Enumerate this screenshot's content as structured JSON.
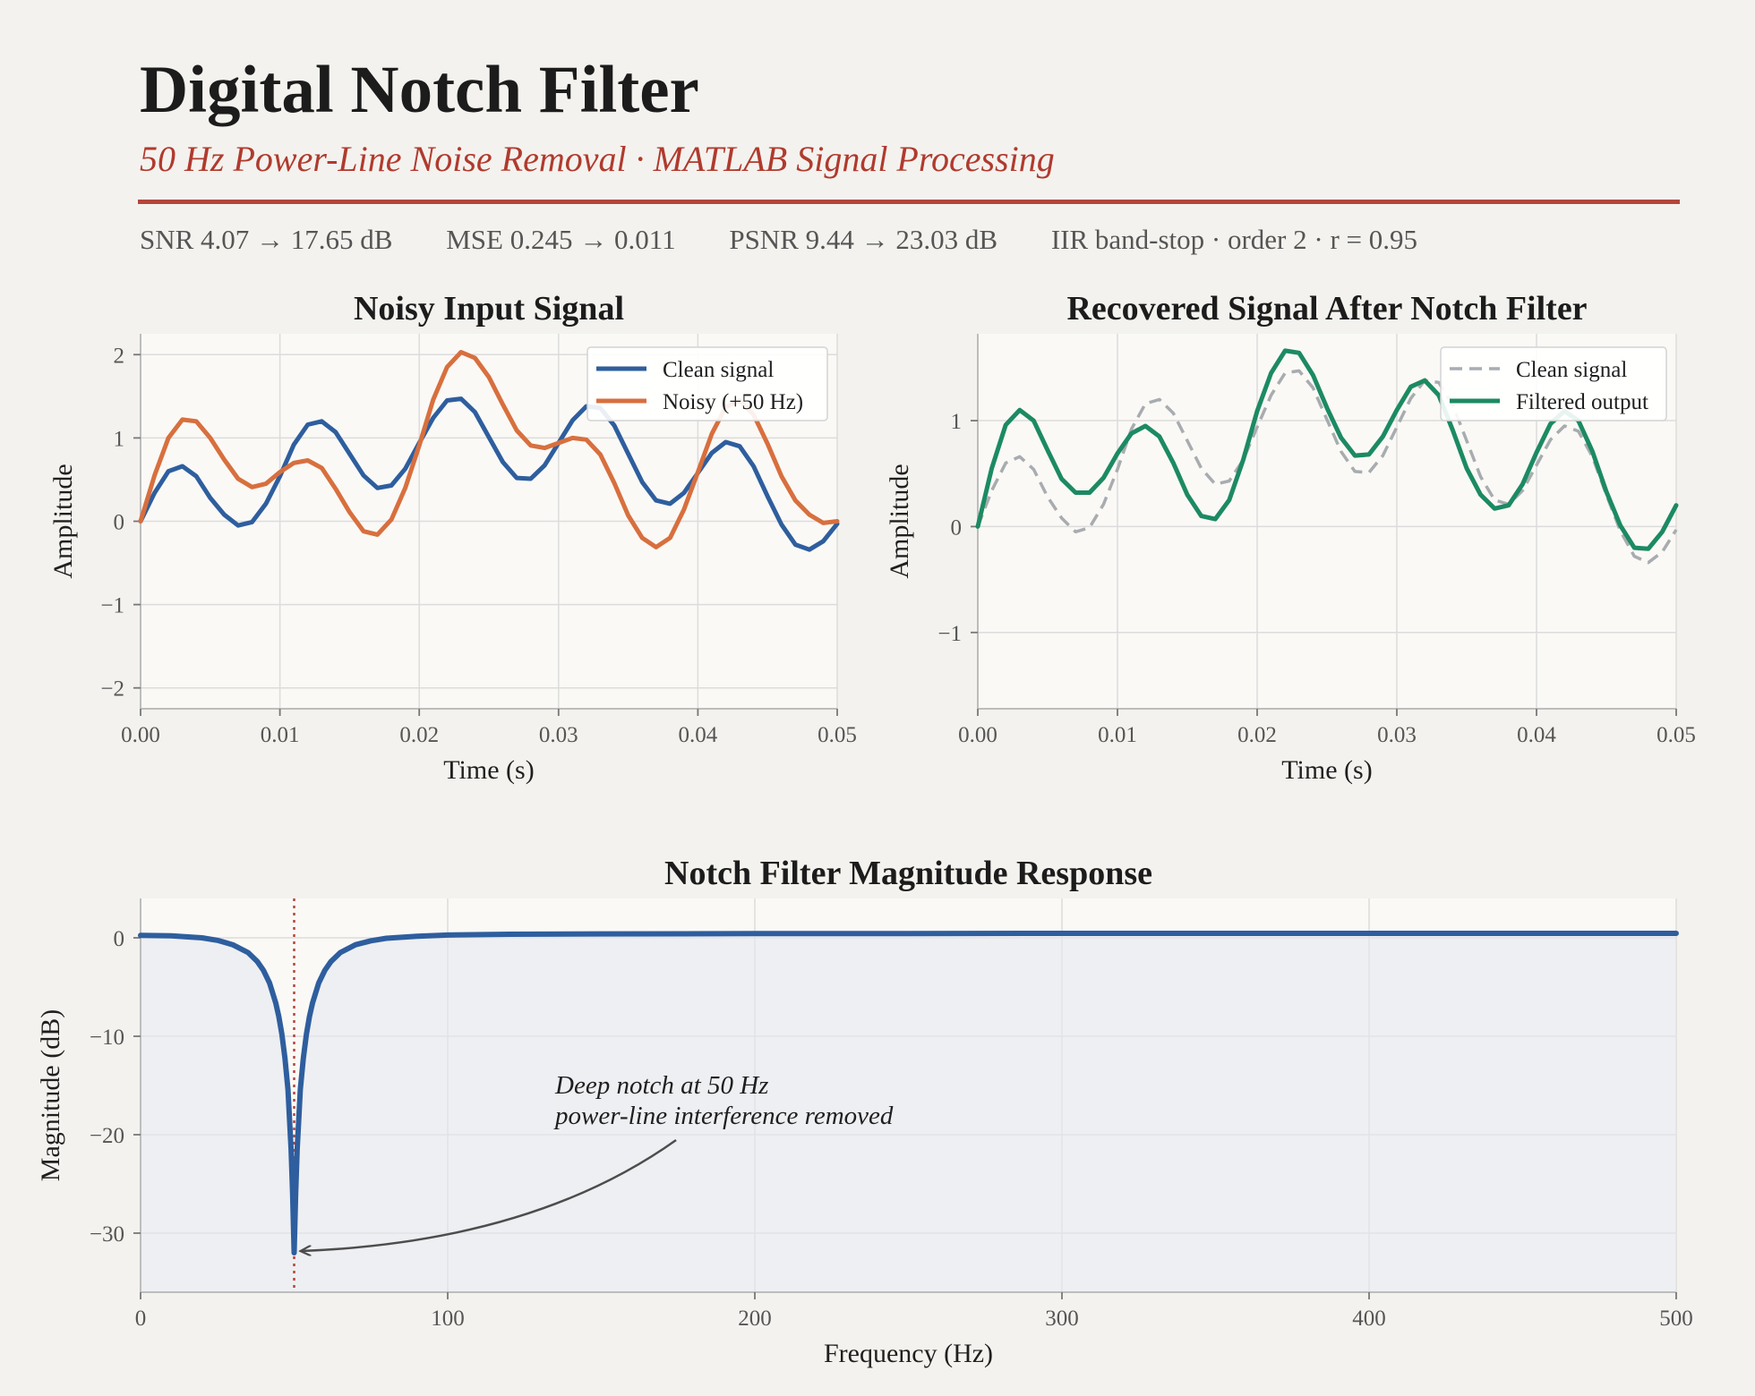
{
  "header": {
    "title": "Digital Notch Filter",
    "subtitle": "50 Hz Power-Line Noise Removal  ·  MATLAB Signal Processing",
    "stats": [
      "SNR  4.07 → 17.65 dB",
      "MSE  0.245 → 0.011",
      "PSNR  9.44 → 23.03 dB",
      "IIR band-stop  ·  order 2  ·  r = 0.95"
    ]
  },
  "colors": {
    "clean": "#2e5e9e",
    "noisy": "#d86f3e",
    "filtered": "#1c8a63",
    "clean_dashed": "#a8acb0",
    "notch_marker": "#b5453b",
    "accent": "#b03a2e"
  },
  "chart_data": [
    {
      "type": "line",
      "title": "Noisy Input Signal",
      "xlabel": "Time (s)",
      "ylabel": "Amplitude",
      "xlim": [
        0,
        0.05
      ],
      "ylim": [
        -2.25,
        2.25
      ],
      "xticks": [
        0,
        0.01,
        0.02,
        0.03,
        0.04,
        0.05
      ],
      "xtick_labels": [
        "0.00",
        "0.01",
        "0.02",
        "0.03",
        "0.04",
        "0.05"
      ],
      "yticks": [
        2,
        1,
        0,
        -1,
        -2
      ],
      "ytick_labels": [
        "2",
        "1",
        "0",
        "−1",
        "−2"
      ],
      "grid": true,
      "legend": "top-right",
      "x": [
        0,
        0.001,
        0.002,
        0.003,
        0.004,
        0.005,
        0.006,
        0.007,
        0.008,
        0.009,
        0.01,
        0.011,
        0.012,
        0.013,
        0.014,
        0.015,
        0.016,
        0.017,
        0.018,
        0.019,
        0.02,
        0.021,
        0.022,
        0.023,
        0.024,
        0.025,
        0.026,
        0.027,
        0.028,
        0.029,
        0.03,
        0.031,
        0.032,
        0.033,
        0.034,
        0.035,
        0.036,
        0.037,
        0.038,
        0.039,
        0.04,
        0.041,
        0.042,
        0.043,
        0.044,
        0.045,
        0.046,
        0.047,
        0.048,
        0.049,
        0.05
      ],
      "series": [
        {
          "name": "Clean signal",
          "values": [
            0,
            0.34,
            0.6,
            0.66,
            0.54,
            0.28,
            0.08,
            -0.05,
            -0.01,
            0.21,
            0.54,
            0.92,
            1.16,
            1.2,
            1.07,
            0.81,
            0.55,
            0.4,
            0.43,
            0.63,
            0.94,
            1.24,
            1.45,
            1.47,
            1.31,
            1.01,
            0.71,
            0.52,
            0.51,
            0.67,
            0.94,
            1.21,
            1.38,
            1.36,
            1.15,
            0.81,
            0.47,
            0.25,
            0.21,
            0.34,
            0.58,
            0.82,
            0.95,
            0.9,
            0.66,
            0.3,
            -0.04,
            -0.28,
            -0.34,
            -0.24,
            -0.03
          ]
        },
        {
          "name": "Noisy  (+50 Hz)",
          "values": [
            0,
            0.55,
            1.0,
            1.22,
            1.2,
            1.0,
            0.74,
            0.51,
            0.41,
            0.45,
            0.59,
            0.7,
            0.73,
            0.64,
            0.39,
            0.11,
            -0.12,
            -0.16,
            0.02,
            0.4,
            0.91,
            1.46,
            1.85,
            2.03,
            1.96,
            1.73,
            1.4,
            1.09,
            0.91,
            0.88,
            0.94,
            1.0,
            0.98,
            0.8,
            0.46,
            0.07,
            -0.2,
            -0.31,
            -0.2,
            0.14,
            0.59,
            1.05,
            1.37,
            1.45,
            1.28,
            0.93,
            0.54,
            0.25,
            0.08,
            -0.02,
            0
          ]
        }
      ]
    },
    {
      "type": "line",
      "title": "Recovered Signal After Notch Filter",
      "xlabel": "Time (s)",
      "ylabel": "Amplitude",
      "xlim": [
        0,
        0.05
      ],
      "ylim": [
        -1.72,
        1.82
      ],
      "xticks": [
        0,
        0.01,
        0.02,
        0.03,
        0.04,
        0.05
      ],
      "xtick_labels": [
        "0.00",
        "0.01",
        "0.02",
        "0.03",
        "0.04",
        "0.05"
      ],
      "yticks": [
        1,
        0,
        -1
      ],
      "ytick_labels": [
        "1",
        "0",
        "−1"
      ],
      "grid": true,
      "legend": "top-right",
      "x": [
        0,
        0.001,
        0.002,
        0.003,
        0.004,
        0.005,
        0.006,
        0.007,
        0.008,
        0.009,
        0.01,
        0.011,
        0.012,
        0.013,
        0.014,
        0.015,
        0.016,
        0.017,
        0.018,
        0.019,
        0.02,
        0.021,
        0.022,
        0.023,
        0.024,
        0.025,
        0.026,
        0.027,
        0.028,
        0.029,
        0.03,
        0.031,
        0.032,
        0.033,
        0.034,
        0.035,
        0.036,
        0.037,
        0.038,
        0.039,
        0.04,
        0.041,
        0.042,
        0.043,
        0.044,
        0.045,
        0.046,
        0.047,
        0.048,
        0.049,
        0.05
      ],
      "series": [
        {
          "name": "Clean signal",
          "style": "dashed",
          "values": [
            0,
            0.34,
            0.6,
            0.66,
            0.54,
            0.28,
            0.08,
            -0.05,
            -0.01,
            0.21,
            0.54,
            0.92,
            1.16,
            1.2,
            1.07,
            0.81,
            0.55,
            0.4,
            0.43,
            0.63,
            0.94,
            1.24,
            1.45,
            1.47,
            1.31,
            1.01,
            0.71,
            0.52,
            0.51,
            0.67,
            0.94,
            1.21,
            1.38,
            1.36,
            1.15,
            0.81,
            0.47,
            0.25,
            0.21,
            0.34,
            0.58,
            0.82,
            0.95,
            0.9,
            0.66,
            0.3,
            -0.04,
            -0.28,
            -0.34,
            -0.24,
            -0.03
          ]
        },
        {
          "name": "Filtered output",
          "values": [
            0,
            0.55,
            0.96,
            1.1,
            1.0,
            0.72,
            0.45,
            0.32,
            0.32,
            0.46,
            0.69,
            0.88,
            0.95,
            0.85,
            0.6,
            0.3,
            0.1,
            0.07,
            0.25,
            0.63,
            1.09,
            1.45,
            1.66,
            1.64,
            1.43,
            1.12,
            0.84,
            0.67,
            0.68,
            0.85,
            1.1,
            1.32,
            1.38,
            1.24,
            0.91,
            0.55,
            0.3,
            0.17,
            0.2,
            0.4,
            0.7,
            0.97,
            1.09,
            1.0,
            0.71,
            0.33,
            0.01,
            -0.2,
            -0.21,
            -0.05,
            0.2
          ]
        }
      ]
    },
    {
      "type": "line",
      "title": "Notch Filter Magnitude Response",
      "xlabel": "Frequency (Hz)",
      "ylabel": "Magnitude (dB)",
      "xlim": [
        0,
        500
      ],
      "ylim": [
        -36,
        4
      ],
      "xticks": [
        0,
        100,
        200,
        300,
        400,
        500
      ],
      "xtick_labels": [
        "0",
        "100",
        "200",
        "300",
        "400",
        "500"
      ],
      "yticks": [
        0,
        -10,
        -20,
        -30
      ],
      "ytick_labels": [
        "0",
        "−10",
        "−20",
        "−30"
      ],
      "grid": true,
      "notch_frequency": 50,
      "notch_depth_db": -32,
      "annotation": {
        "lines": [
          "Deep notch at 50 Hz",
          "power-line interference removed"
        ],
        "text_at": [
          135,
          -18
        ],
        "points_to": [
          50,
          -32
        ]
      },
      "series": [
        {
          "name": "Magnitude response",
          "x": [
            0,
            10,
            20,
            25,
            30,
            35,
            38,
            40,
            42,
            44,
            45,
            46,
            47,
            48,
            49,
            49.5,
            50,
            50.5,
            51,
            52,
            53,
            54,
            55,
            56,
            58,
            60,
            62,
            65,
            70,
            75,
            80,
            90,
            100,
            120,
            150,
            200,
            250,
            300,
            350,
            400,
            450,
            500
          ],
          "values": [
            0.25,
            0.2,
            0.0,
            -0.25,
            -0.7,
            -1.5,
            -2.4,
            -3.3,
            -4.6,
            -6.6,
            -8.0,
            -9.8,
            -12.2,
            -15.4,
            -21.5,
            -26.0,
            -32.0,
            -26.0,
            -21.5,
            -15.4,
            -12.2,
            -9.8,
            -8.0,
            -6.6,
            -4.6,
            -3.3,
            -2.4,
            -1.5,
            -0.7,
            -0.3,
            -0.05,
            0.15,
            0.28,
            0.36,
            0.4,
            0.43,
            0.44,
            0.45,
            0.45,
            0.45,
            0.45,
            0.45
          ]
        }
      ]
    }
  ]
}
